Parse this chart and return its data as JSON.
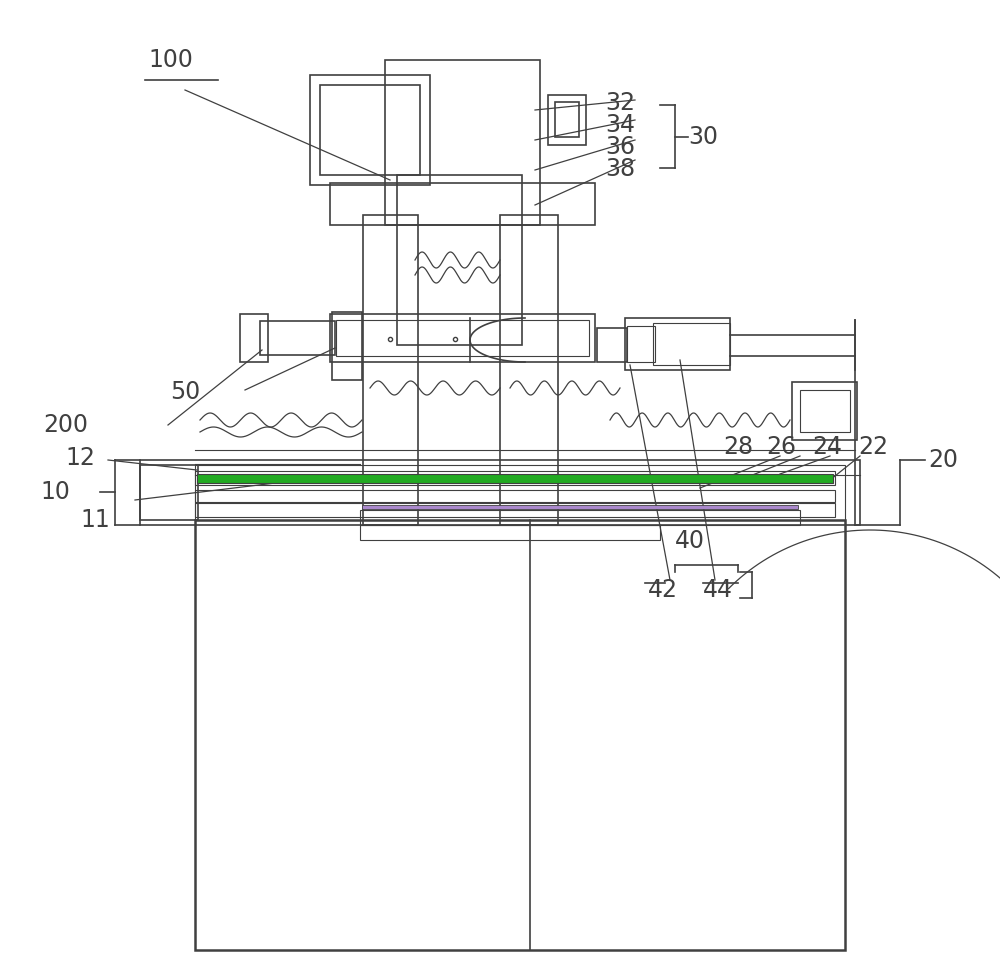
{
  "bg_color": "#ffffff",
  "lc": "#404040",
  "lw": 1.2,
  "lw_thin": 0.8,
  "lw_thick": 1.8,
  "green_fill": "#22aa22",
  "purple_fill": "#9966bb",
  "fig_w": 10.0,
  "fig_h": 9.8,
  "dpi": 100
}
